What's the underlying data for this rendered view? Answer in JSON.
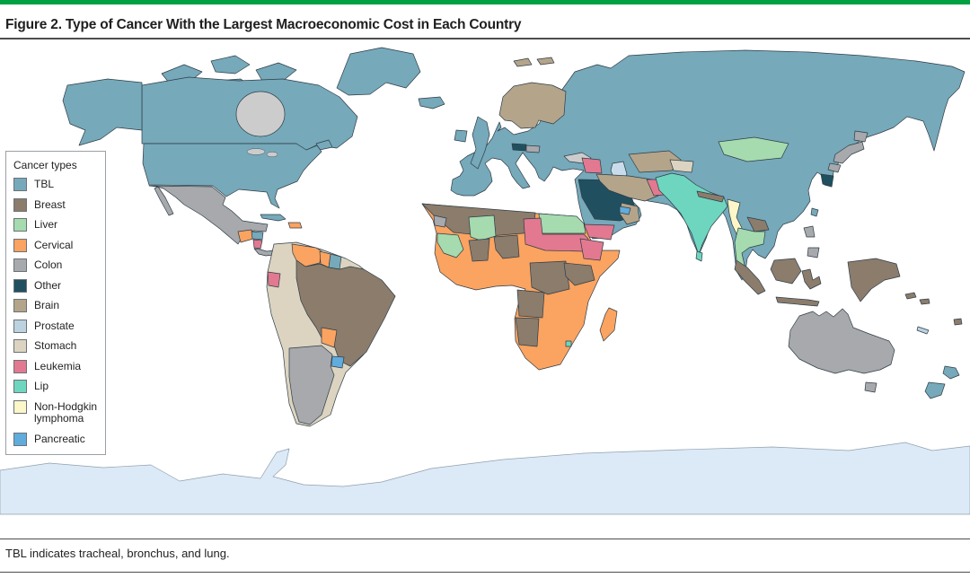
{
  "figure": {
    "title": "Figure 2. Type of Cancer With the Largest Macroeconomic Cost in Each Country",
    "footnote": "TBL indicates tracheal, bronchus, and lung.",
    "accent_bar_color": "#00a142"
  },
  "legend": {
    "title": "Cancer types",
    "items": [
      {
        "label": "TBL",
        "color": "#76a9ba"
      },
      {
        "label": "Breast",
        "color": "#8b7c6c"
      },
      {
        "label": "Liver",
        "color": "#a5dbae"
      },
      {
        "label": "Cervical",
        "color": "#fba360"
      },
      {
        "label": "Colon",
        "color": "#a7a9ac"
      },
      {
        "label": "Other",
        "color": "#20505f"
      },
      {
        "label": "Brain",
        "color": "#b4a48a"
      },
      {
        "label": "Prostate",
        "color": "#bcd2e0"
      },
      {
        "label": "Stomach",
        "color": "#dcd4c0"
      },
      {
        "label": "Leukemia",
        "color": "#e27990"
      },
      {
        "label": "Lip",
        "color": "#6ed6bf"
      },
      {
        "label": "Non-Hodgkin lymphoma",
        "color": "#fcf6c8"
      },
      {
        "label": "Pancreatic",
        "color": "#60acdc"
      }
    ]
  },
  "map": {
    "ocean_color": "#ffffff",
    "border_color": "#2e3c46",
    "antarctica_color": "#dce9f7",
    "antarctica_border_color": "#90a0ac",
    "inland_water_color": "#c9dcec"
  },
  "chart_data": {
    "type": "choropleth",
    "title": "Type of Cancer With the Largest Macroeconomic Cost in Each Country",
    "legend_title": "Cancer types",
    "categories": [
      "TBL",
      "Breast",
      "Liver",
      "Cervical",
      "Colon",
      "Other",
      "Brain",
      "Prostate",
      "Stomach",
      "Leukemia",
      "Lip",
      "Non-Hodgkin lymphoma",
      "Pancreatic"
    ],
    "regions": {
      "greenland": "TBL",
      "canadian-arctic": "TBL",
      "canada": "TBL",
      "alaska": "TBL",
      "usa": "TBL",
      "mexico": "Colon",
      "guatemala": "Cervical",
      "honduras": "TBL",
      "nicaragua": "Leukemia",
      "costa-rica-panama": "Colon",
      "cuba": "TBL",
      "hispaniola": "Cervical",
      "colombia-peru-bolivia-chile": "Stomach",
      "venezuela": "Cervical",
      "guyana": "Cervical",
      "suriname": "TBL",
      "ecuador": "Leukemia",
      "brazil": "Breast",
      "paraguay": "Cervical",
      "uruguay": "Pancreatic",
      "argentina": "Colon",
      "eurasia": "TBL",
      "iceland": "TBL",
      "britain": "TBL",
      "ireland": "TBL",
      "scandinavia": "Brain",
      "svalbard": "Brain",
      "austria": "Other",
      "hungary": "Colon",
      "africa-east-south": "Cervical",
      "maghreb-libya": "Breast",
      "western-sahara": "Colon",
      "mali": "Liver",
      "senegal-guinea": "Liver",
      "egypt": "Liver",
      "chad-sudan": "Leukemia",
      "ethiopia": "Leukemia",
      "nigeria": "Breast",
      "ghana": "Breast",
      "drc": "Breast",
      "uganda-kenya": "Breast",
      "angola": "Breast",
      "namibia": "Breast",
      "eswatini": "Lip",
      "madagascar": "Cervical",
      "syria": "Leukemia",
      "saudi-arabia-iraq-jordan": "Other",
      "yemen": "Leukemia",
      "oman": "Brain",
      "uae": "Pancreatic",
      "iran": "Brain",
      "afghanistan": "Leukemia",
      "turkmenistan-uzbekistan": "Brain",
      "kyrgyzstan-tajikistan": "Stomach",
      "mongolia": "Liver",
      "india-pakistan-bangladesh": "Lip",
      "sri-lanka": "Lip",
      "nepal": "Breast",
      "myanmar": "Non-Hodgkin lymphoma",
      "laos": "Breast",
      "thailand-cambodia": "Liver",
      "vietnam": "TBL",
      "china": "TBL",
      "russia": "TBL",
      "south-korea": "Other",
      "taiwan": "TBL",
      "japan": "Colon",
      "philippines": "Colon",
      "borneo": "Breast",
      "sumatra": "Breast",
      "java": "Breast",
      "sulawesi": "Breast",
      "new-guinea": "Breast",
      "solomon-islands": "Breast",
      "fiji": "Breast",
      "new-caledonia": "Prostate",
      "australia": "Colon",
      "tasmania": "Colon",
      "new-zealand": "TBL"
    }
  }
}
